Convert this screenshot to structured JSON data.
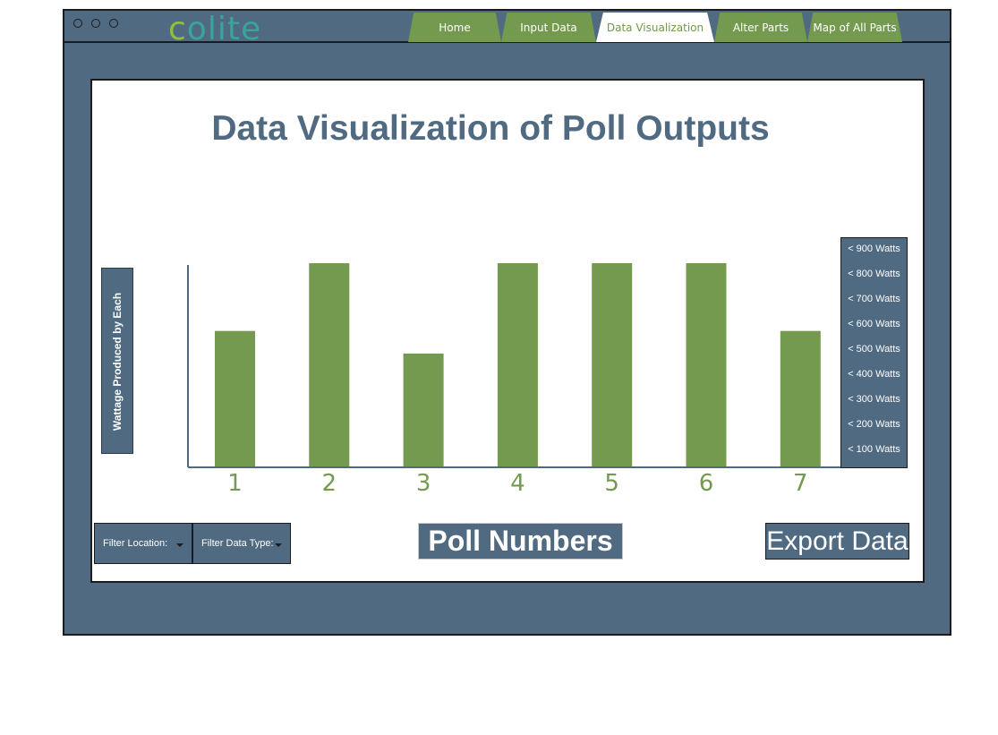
{
  "window": {
    "logo": {
      "first": "c",
      "rest": "olite"
    },
    "tabs": [
      {
        "label": "Home",
        "active": false
      },
      {
        "label": "Input Data",
        "active": false
      },
      {
        "label": "Data Visualization",
        "active": true
      },
      {
        "label": "Alter Parts",
        "active": false
      },
      {
        "label": "Map of All Parts",
        "active": false
      }
    ]
  },
  "main": {
    "title": "Data Visualization of Poll Outputs",
    "filter_location": "Filter Location:",
    "filter_data_type": "Filter Data Type:",
    "export_label": "Export Data"
  },
  "colors": {
    "frame": "#506a82",
    "bar": "#739a4f",
    "accent_green": "#8cc040",
    "logo_teal": "#3aa39a"
  },
  "chart_data": {
    "type": "bar",
    "categories": [
      "1",
      "2",
      "3",
      "4",
      "5",
      "6",
      "7"
    ],
    "values": [
      6,
      9,
      5,
      9,
      9,
      9,
      6
    ],
    "xlabel": "Poll Numbers",
    "ylabel": "Wattage Produced by Each",
    "ylim": [
      0,
      9
    ],
    "legend": [
      "< 900 Watts",
      "< 800 Watts",
      "< 700 Watts",
      "< 600 Watts",
      "< 500 Watts",
      "< 400 Watts",
      "< 300 Watts",
      "< 200 Watts",
      "< 100 Watts"
    ],
    "legend_position": "right",
    "grid": false
  }
}
